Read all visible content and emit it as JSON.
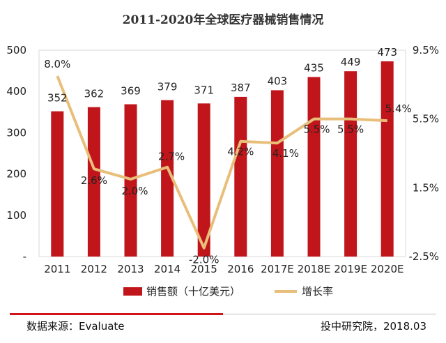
{
  "chart_data": {
    "type": "bar+line",
    "title": "2011-2020年全球医疗器械销售情况",
    "categories": [
      "2011",
      "2012",
      "2013",
      "2014",
      "2015",
      "2016",
      "2017E",
      "2018E",
      "2019E",
      "2020E"
    ],
    "series": [
      {
        "name": "销售额（十亿美元）",
        "type": "bar",
        "axis": "left",
        "values": [
          352,
          362,
          369,
          379,
          371,
          387,
          403,
          435,
          449,
          473
        ],
        "labels": [
          "352",
          "362",
          "369",
          "379",
          "371",
          "387",
          "403",
          "435",
          "449",
          "473"
        ],
        "color": "#C0151B"
      },
      {
        "name": "增长率",
        "type": "line",
        "axis": "right",
        "values": [
          8.0,
          2.6,
          2.0,
          2.7,
          -2.0,
          4.2,
          4.1,
          5.5,
          5.5,
          5.4
        ],
        "labels": [
          "8.0%",
          "2.6%",
          "2.0%",
          "2.7%",
          "-2.0%",
          "4.2%",
          "4.1%",
          "5.5%",
          "5.5%",
          "5.4%"
        ],
        "color": "#E8BF7A"
      }
    ],
    "y_left": {
      "min": 0,
      "max": 500,
      "ticks": [
        0,
        100,
        200,
        300,
        400,
        500
      ],
      "tick_labels": [
        "-",
        "100",
        "200",
        "300",
        "400",
        "500"
      ]
    },
    "y_right": {
      "min": -2.5,
      "max": 9.5,
      "ticks": [
        -2.5,
        1.5,
        5.5,
        9.5
      ],
      "tick_labels": [
        "-2.5%",
        "1.5%",
        "5.5%",
        "9.5%"
      ]
    },
    "legend_position": "bottom"
  },
  "footer": {
    "source": "数据来源：Evaluate",
    "credit": "投中研究院，2018.03"
  },
  "colors": {
    "bar": "#C0151B",
    "line": "#E8BF7A",
    "rule_red": "#D0141A",
    "rule_gray": "#BFBFBF"
  }
}
